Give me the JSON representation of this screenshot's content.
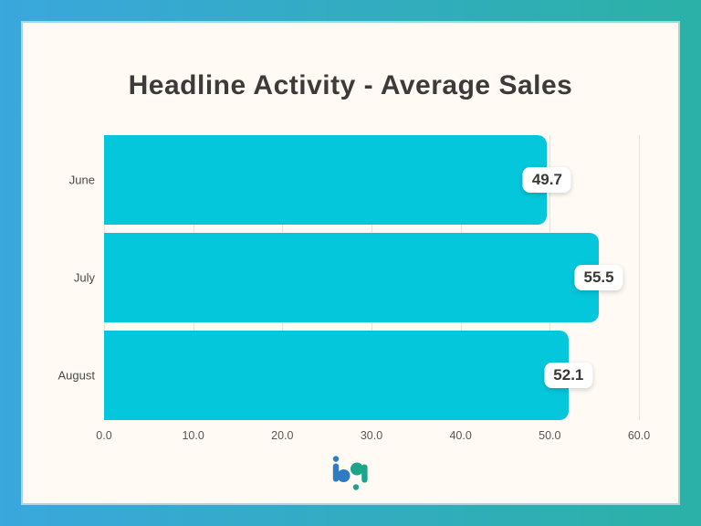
{
  "theme": {
    "border_gradient_left": "#3AA7DD",
    "border_gradient_right": "#2BB1A6",
    "card_bg": "#FFFBF4",
    "bar_color": "#04C7DB",
    "title_color": "#3D3B3A",
    "grid_color": "#E6E3DD",
    "value_box_bg": "#FFFFFF",
    "logo_blue": "#2F7CC0",
    "logo_teal": "#1CA489"
  },
  "chart_data": {
    "type": "bar",
    "orientation": "horizontal",
    "title": "Headline Activity - Average Sales",
    "categories": [
      "June",
      "July",
      "August"
    ],
    "values": [
      49.7,
      55.5,
      52.1
    ],
    "value_labels": [
      "49.7",
      "55.5",
      "52.1"
    ],
    "xlabel": "",
    "ylabel": "",
    "xlim": [
      0,
      60
    ],
    "x_ticks": [
      0,
      10,
      20,
      30,
      40,
      50,
      60
    ],
    "x_tick_labels": [
      "0.0",
      "10.0",
      "20.0",
      "30.0",
      "40.0",
      "50.0",
      "60.0"
    ],
    "grid": true,
    "legend": false
  },
  "footer": {
    "logo_name": "bp-logo"
  }
}
